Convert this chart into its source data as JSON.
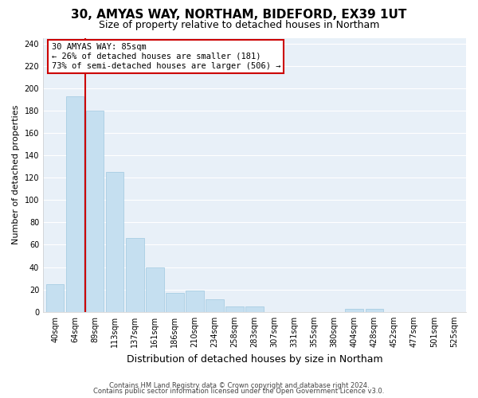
{
  "title": "30, AMYAS WAY, NORTHAM, BIDEFORD, EX39 1UT",
  "subtitle": "Size of property relative to detached houses in Northam",
  "xlabel": "Distribution of detached houses by size in Northam",
  "ylabel": "Number of detached properties",
  "bar_labels": [
    "40sqm",
    "64sqm",
    "89sqm",
    "113sqm",
    "137sqm",
    "161sqm",
    "186sqm",
    "210sqm",
    "234sqm",
    "258sqm",
    "283sqm",
    "307sqm",
    "331sqm",
    "355sqm",
    "380sqm",
    "404sqm",
    "428sqm",
    "452sqm",
    "477sqm",
    "501sqm",
    "525sqm"
  ],
  "bar_values": [
    25,
    193,
    180,
    125,
    66,
    40,
    17,
    19,
    11,
    5,
    5,
    0,
    0,
    0,
    0,
    3,
    3,
    0,
    0,
    0,
    0
  ],
  "bar_color": "#c5dff0",
  "bar_edge_color": "#9fc8e0",
  "highlight_label": "30 AMYAS WAY: 85sqm",
  "annotation_line1": "← 26% of detached houses are smaller (181)",
  "annotation_line2": "73% of semi-detached houses are larger (506) →",
  "box_facecolor": "#ffffff",
  "box_edge_color": "#cc0000",
  "vline_color": "#cc0000",
  "ylim": [
    0,
    245
  ],
  "yticks": [
    0,
    20,
    40,
    60,
    80,
    100,
    120,
    140,
    160,
    180,
    200,
    220,
    240
  ],
  "footer1": "Contains HM Land Registry data © Crown copyright and database right 2024.",
  "footer2": "Contains public sector information licensed under the Open Government Licence v3.0.",
  "bg_color": "#ffffff",
  "plot_bg_color": "#e8f0f8",
  "grid_color": "#ffffff",
  "title_fontsize": 11,
  "subtitle_fontsize": 9,
  "ylabel_fontsize": 8,
  "xlabel_fontsize": 9,
  "tick_fontsize": 7,
  "footer_fontsize": 6
}
